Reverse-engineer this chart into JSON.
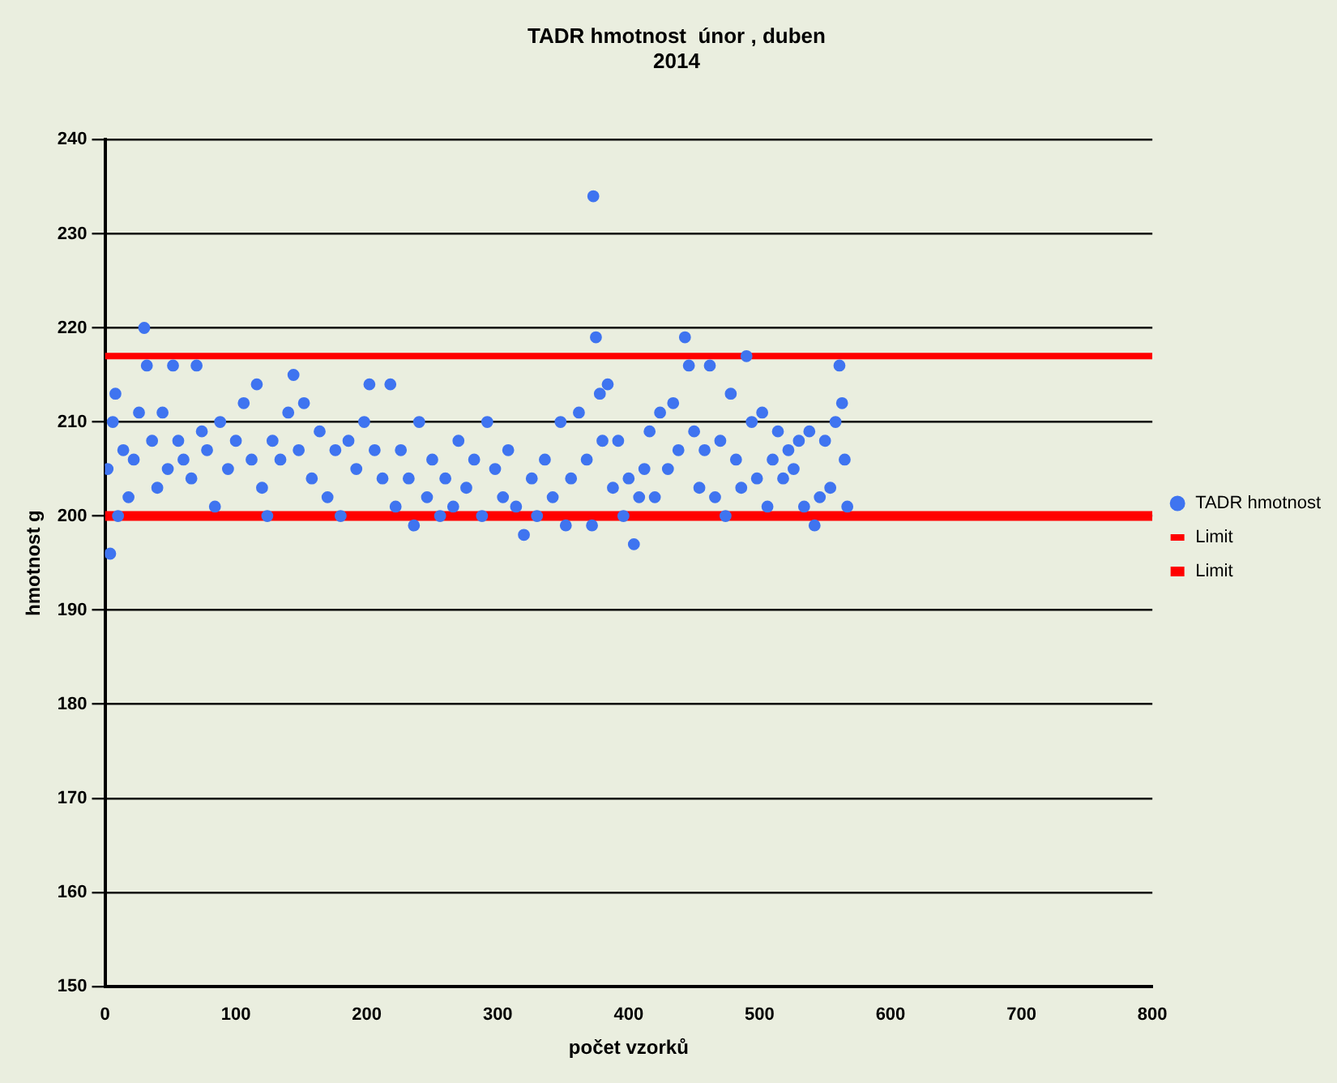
{
  "chart_data": {
    "type": "scatter",
    "title": "TADR hmotnost  únor , duben\n2014",
    "xlabel": "počet vzorků",
    "ylabel": "hmotnost g",
    "xlim": [
      0,
      800
    ],
    "xticks": [
      0,
      100,
      200,
      300,
      400,
      500,
      600,
      700,
      800
    ],
    "ylim": [
      150,
      240
    ],
    "yticks": [
      150,
      160,
      170,
      180,
      190,
      200,
      210,
      220,
      230,
      240
    ],
    "grid": "y",
    "legend": "right",
    "series": [
      {
        "name": "TADR hmotnost",
        "marker": "circle",
        "color": "#3f74f0",
        "x": [
          2,
          4,
          6,
          8,
          10,
          14,
          18,
          22,
          26,
          30,
          32,
          36,
          40,
          44,
          48,
          52,
          56,
          60,
          66,
          70,
          74,
          78,
          84,
          88,
          94,
          100,
          106,
          112,
          116,
          120,
          124,
          128,
          134,
          140,
          144,
          148,
          152,
          158,
          164,
          170,
          176,
          180,
          186,
          192,
          198,
          202,
          206,
          212,
          218,
          222,
          226,
          232,
          236,
          240,
          246,
          250,
          256,
          260,
          266,
          270,
          276,
          282,
          288,
          292,
          298,
          304,
          308,
          314,
          320,
          326,
          330,
          336,
          342,
          348,
          352,
          356,
          362,
          368,
          372,
          373,
          375,
          378,
          380,
          384,
          388,
          392,
          396,
          400,
          404,
          408,
          412,
          416,
          420,
          424,
          430,
          434,
          438,
          443,
          446,
          450,
          454,
          458,
          462,
          466,
          470,
          474,
          478,
          482,
          486,
          490,
          494,
          498,
          502,
          506,
          510,
          514,
          518,
          522,
          526,
          530,
          534,
          538,
          542,
          546,
          550,
          554,
          558,
          561,
          563,
          565,
          567
        ],
        "values": [
          205,
          196,
          210,
          213,
          200,
          207,
          202,
          206,
          211,
          220,
          216,
          208,
          203,
          211,
          205,
          216,
          208,
          206,
          204,
          216,
          209,
          207,
          201,
          210,
          205,
          208,
          212,
          206,
          214,
          203,
          200,
          208,
          206,
          211,
          215,
          207,
          212,
          204,
          209,
          202,
          207,
          200,
          208,
          205,
          210,
          214,
          207,
          204,
          214,
          201,
          207,
          204,
          199,
          210,
          202,
          206,
          200,
          204,
          201,
          208,
          203,
          206,
          200,
          210,
          205,
          202,
          207,
          201,
          198,
          204,
          200,
          206,
          202,
          210,
          199,
          204,
          211,
          206,
          199,
          234,
          219,
          213,
          208,
          214,
          203,
          208,
          200,
          204,
          197,
          202,
          205,
          209,
          202,
          211,
          205,
          212,
          207,
          219,
          216,
          209,
          203,
          207,
          216,
          202,
          208,
          200,
          213,
          206,
          203,
          217,
          210,
          204,
          211,
          201,
          206,
          209,
          204,
          207,
          205,
          208,
          201,
          209,
          199,
          202,
          208,
          203,
          210,
          216,
          212,
          206,
          201
        ]
      },
      {
        "name": "Limit",
        "type": "line",
        "color": "#ff0000",
        "x": [
          0,
          800
        ],
        "values": [
          217,
          217
        ]
      },
      {
        "name": "Limit",
        "type": "line",
        "color": "#ff0000",
        "x": [
          0,
          800
        ],
        "values": [
          200,
          200
        ]
      }
    ]
  }
}
